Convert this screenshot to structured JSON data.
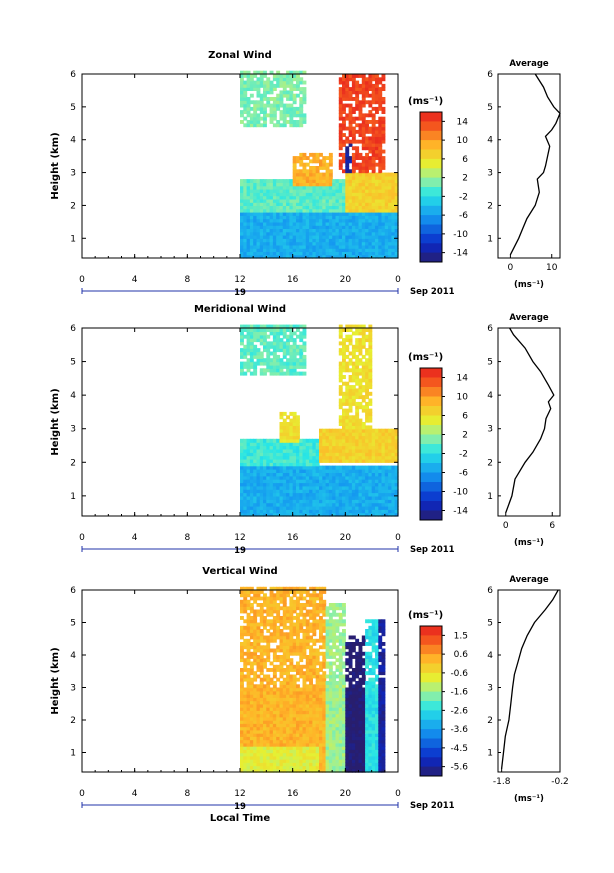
{
  "figure": {
    "x_axis_label": "Local Time",
    "date_label": "Sep 2011",
    "day_label": "19",
    "y_axis_label": "Height (km)",
    "x_ticks": [
      "0",
      "4",
      "8",
      "12",
      "16",
      "20",
      "0"
    ],
    "y_ticks": [
      "1",
      "2",
      "3",
      "4",
      "5",
      "6"
    ],
    "unit_label": "(ms⁻¹)",
    "avg_title": "Average",
    "avg_unit_label": "(ms⁻¹)"
  },
  "chart_data": [
    {
      "type": "heatmap",
      "title": "Zonal Wind",
      "xlabel": "",
      "ylabel": "Height (km)",
      "x_unit": "hour of day (local time)",
      "xlim": [
        0,
        24
      ],
      "ylim": [
        0.4,
        6
      ],
      "data_start_hour": 12,
      "colorbar": {
        "ticks": [
          14,
          10,
          6,
          2,
          -2,
          -6,
          -10,
          -14
        ],
        "range": [
          -16,
          16
        ]
      },
      "cmap": "jet",
      "features": [
        {
          "hour_range": [
            12,
            24
          ],
          "height_range": [
            0.4,
            1.8
          ],
          "value": -5
        },
        {
          "hour_range": [
            12,
            20
          ],
          "height_range": [
            1.8,
            2.8
          ],
          "value": 0
        },
        {
          "hour_range": [
            20,
            24
          ],
          "height_range": [
            1.8,
            3.0
          ],
          "value": 7
        },
        {
          "hour_range": [
            19.5,
            23
          ],
          "height_range": [
            3.0,
            5.9
          ],
          "value": 14
        },
        {
          "hour_range": [
            20,
            20.4
          ],
          "height_range": [
            3.0,
            3.9
          ],
          "value": -14
        },
        {
          "hour_range": [
            16,
            19
          ],
          "height_range": [
            2.6,
            3.6
          ],
          "value": 9
        },
        {
          "hour_range": [
            12,
            17
          ],
          "height_range": [
            4.4,
            6.0
          ],
          "value": 1
        }
      ],
      "average": {
        "xticks": [
          0,
          10
        ],
        "xlim": [
          -3,
          12
        ],
        "x": [
          0,
          2,
          3,
          4,
          6,
          7,
          6.5,
          8,
          8.5,
          9,
          9.5,
          8.5,
          10,
          11,
          12,
          10.5,
          9,
          8,
          6
        ],
        "y": [
          0.5,
          1.0,
          1.3,
          1.6,
          2.0,
          2.4,
          2.8,
          3.0,
          3.2,
          3.5,
          3.8,
          4.1,
          4.3,
          4.5,
          4.8,
          5.0,
          5.3,
          5.6,
          6.0
        ]
      }
    },
    {
      "type": "heatmap",
      "title": "Meridional Wind",
      "xlabel": "",
      "ylabel": "Height (km)",
      "x_unit": "hour of day (local time)",
      "xlim": [
        0,
        24
      ],
      "ylim": [
        0.4,
        6
      ],
      "data_start_hour": 12,
      "colorbar": {
        "ticks": [
          14,
          10,
          6,
          2,
          -2,
          -6,
          -10,
          -14
        ],
        "range": [
          -16,
          16
        ]
      },
      "cmap": "jet",
      "features": [
        {
          "hour_range": [
            12,
            24
          ],
          "height_range": [
            0.4,
            1.9
          ],
          "value": -5
        },
        {
          "hour_range": [
            12,
            18
          ],
          "height_range": [
            1.9,
            2.7
          ],
          "value": -1
        },
        {
          "hour_range": [
            18,
            24
          ],
          "height_range": [
            2.0,
            3.0
          ],
          "value": 7
        },
        {
          "hour_range": [
            19.5,
            22
          ],
          "height_range": [
            3.0,
            6.0
          ],
          "value": 6
        },
        {
          "hour_range": [
            15,
            16.5
          ],
          "height_range": [
            2.6,
            3.5
          ],
          "value": 6
        },
        {
          "hour_range": [
            12,
            17
          ],
          "height_range": [
            4.6,
            6.0
          ],
          "value": 0
        }
      ],
      "average": {
        "xticks": [
          0,
          6
        ],
        "xlim": [
          -1,
          7
        ],
        "x": [
          0,
          0.8,
          1.2,
          2.5,
          3.5,
          4.5,
          5,
          5.2,
          5.8,
          5.5,
          6.2,
          5.5,
          4.5,
          3.5,
          2.5,
          1,
          0.5
        ],
        "y": [
          0.5,
          1.0,
          1.5,
          2.0,
          2.3,
          2.7,
          3.0,
          3.3,
          3.6,
          3.8,
          4.0,
          4.3,
          4.7,
          5.0,
          5.4,
          5.8,
          6.0
        ]
      }
    },
    {
      "type": "heatmap",
      "title": "Vertical Wind",
      "xlabel": "Local Time",
      "ylabel": "Height (km)",
      "x_unit": "hour of day (local time)",
      "xlim": [
        0,
        24
      ],
      "ylim": [
        0.4,
        6
      ],
      "data_start_hour": 12,
      "colorbar": {
        "ticks": [
          1.5,
          0.6,
          -0.6,
          -1.6,
          -2.6,
          -3.6,
          -4.5,
          -5.6
        ],
        "range": [
          -6,
          2
        ]
      },
      "cmap": "jet",
      "features": [
        {
          "hour_range": [
            12,
            18.5
          ],
          "height_range": [
            0.4,
            6.0
          ],
          "value": 0.2
        },
        {
          "hour_range": [
            18.5,
            19.8
          ],
          "height_range": [
            0.4,
            5.5
          ],
          "value": -1.5
        },
        {
          "hour_range": [
            19.8,
            21.5
          ],
          "height_range": [
            0.4,
            4.6
          ],
          "value": -6
        },
        {
          "hour_range": [
            21.5,
            22.3
          ],
          "height_range": [
            0.4,
            5.0
          ],
          "value": -2.5
        },
        {
          "hour_range": [
            22.3,
            23
          ],
          "height_range": [
            0.4,
            5.0
          ],
          "value": -5.5
        },
        {
          "hour_range": [
            12,
            18
          ],
          "height_range": [
            0.4,
            1.2
          ],
          "value": -0.8
        }
      ],
      "average": {
        "xticks": [
          -1.8,
          -0.2
        ],
        "xlim": [
          -1.9,
          -0.2
        ],
        "x": [
          -1.8,
          -1.75,
          -1.7,
          -1.6,
          -1.55,
          -1.5,
          -1.45,
          -1.35,
          -1.25,
          -1.1,
          -0.9,
          -0.6,
          -0.4,
          -0.25
        ],
        "y": [
          0.5,
          1.0,
          1.5,
          2.0,
          2.5,
          3.0,
          3.4,
          3.8,
          4.2,
          4.6,
          5.0,
          5.4,
          5.7,
          6.0
        ]
      }
    }
  ]
}
